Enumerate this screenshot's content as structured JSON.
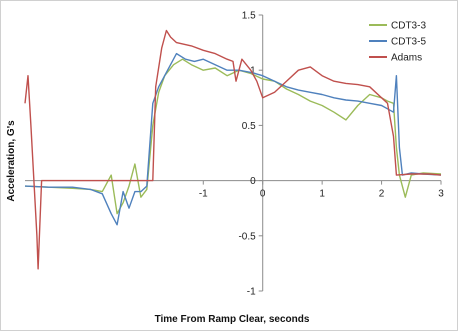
{
  "chart_data": {
    "type": "line",
    "title": "",
    "xlabel": "Time From Ramp Clear, seconds",
    "ylabel": "Acceleration, G's",
    "xlim": [
      -4,
      3
    ],
    "ylim": [
      -1,
      1.5
    ],
    "x_ticks": [
      "-1",
      "0",
      "1",
      "2",
      "3"
    ],
    "x_tick_values": [
      -1,
      0,
      1,
      2,
      3
    ],
    "y_ticks": [
      "-1",
      "-0.5",
      "0",
      "0.5",
      "1",
      "1.5"
    ],
    "y_tick_values": [
      -1,
      -0.5,
      0,
      0.5,
      1,
      1.5
    ],
    "grid": false,
    "legend_position": "top-right",
    "series": [
      {
        "name": "CDT3-3",
        "color": "#9bbb59",
        "points": [
          [
            -4.0,
            -0.05
          ],
          [
            -3.6,
            -0.06
          ],
          [
            -3.2,
            -0.07
          ],
          [
            -2.9,
            -0.08
          ],
          [
            -2.7,
            -0.1
          ],
          [
            -2.55,
            0.05
          ],
          [
            -2.45,
            -0.3
          ],
          [
            -2.35,
            -0.2
          ],
          [
            -2.25,
            -0.05
          ],
          [
            -2.15,
            0.15
          ],
          [
            -2.05,
            -0.15
          ],
          [
            -1.95,
            -0.08
          ],
          [
            -1.85,
            0.5
          ],
          [
            -1.75,
            0.8
          ],
          [
            -1.65,
            0.95
          ],
          [
            -1.5,
            1.05
          ],
          [
            -1.35,
            1.1
          ],
          [
            -1.2,
            1.05
          ],
          [
            -1.0,
            1.0
          ],
          [
            -0.8,
            1.02
          ],
          [
            -0.6,
            0.95
          ],
          [
            -0.4,
            1.0
          ],
          [
            -0.2,
            0.97
          ],
          [
            0.0,
            0.92
          ],
          [
            0.2,
            0.9
          ],
          [
            0.4,
            0.83
          ],
          [
            0.6,
            0.78
          ],
          [
            0.8,
            0.72
          ],
          [
            1.0,
            0.68
          ],
          [
            1.2,
            0.62
          ],
          [
            1.4,
            0.55
          ],
          [
            1.6,
            0.68
          ],
          [
            1.8,
            0.78
          ],
          [
            2.0,
            0.75
          ],
          [
            2.1,
            0.72
          ],
          [
            2.2,
            0.7
          ],
          [
            2.25,
            0.3
          ],
          [
            2.3,
            0.05
          ],
          [
            2.4,
            -0.15
          ],
          [
            2.5,
            0.05
          ],
          [
            2.7,
            0.07
          ],
          [
            3.0,
            0.06
          ]
        ]
      },
      {
        "name": "CDT3-5",
        "color": "#4f81bd",
        "points": [
          [
            -4.0,
            -0.05
          ],
          [
            -3.6,
            -0.06
          ],
          [
            -3.2,
            -0.06
          ],
          [
            -2.9,
            -0.08
          ],
          [
            -2.7,
            -0.12
          ],
          [
            -2.55,
            -0.3
          ],
          [
            -2.45,
            -0.4
          ],
          [
            -2.35,
            -0.1
          ],
          [
            -2.25,
            -0.25
          ],
          [
            -2.15,
            -0.1
          ],
          [
            -2.05,
            -0.1
          ],
          [
            -1.95,
            -0.05
          ],
          [
            -1.85,
            0.7
          ],
          [
            -1.75,
            0.85
          ],
          [
            -1.6,
            1.0
          ],
          [
            -1.45,
            1.15
          ],
          [
            -1.3,
            1.1
          ],
          [
            -1.15,
            1.08
          ],
          [
            -1.0,
            1.1
          ],
          [
            -0.8,
            1.05
          ],
          [
            -0.6,
            1.0
          ],
          [
            -0.4,
            1.0
          ],
          [
            -0.2,
            0.98
          ],
          [
            0.0,
            0.95
          ],
          [
            0.2,
            0.9
          ],
          [
            0.4,
            0.85
          ],
          [
            0.6,
            0.82
          ],
          [
            0.8,
            0.8
          ],
          [
            1.0,
            0.78
          ],
          [
            1.2,
            0.75
          ],
          [
            1.4,
            0.73
          ],
          [
            1.6,
            0.72
          ],
          [
            1.8,
            0.7
          ],
          [
            2.0,
            0.68
          ],
          [
            2.1,
            0.65
          ],
          [
            2.2,
            0.62
          ],
          [
            2.25,
            0.95
          ],
          [
            2.3,
            0.3
          ],
          [
            2.35,
            0.05
          ],
          [
            2.5,
            0.07
          ],
          [
            2.7,
            0.06
          ],
          [
            3.0,
            0.05
          ]
        ]
      },
      {
        "name": "Adams",
        "color": "#c0504d",
        "points": [
          [
            -4.0,
            0.7
          ],
          [
            -3.95,
            0.95
          ],
          [
            -3.9,
            0.5
          ],
          [
            -3.85,
            0.0
          ],
          [
            -3.8,
            -0.5
          ],
          [
            -3.78,
            -0.8
          ],
          [
            -3.72,
            0.0
          ],
          [
            -3.65,
            0.0
          ],
          [
            -3.0,
            0.0
          ],
          [
            -2.5,
            0.0
          ],
          [
            -2.0,
            0.0
          ],
          [
            -1.85,
            0.0
          ],
          [
            -1.8,
            0.85
          ],
          [
            -1.7,
            1.2
          ],
          [
            -1.62,
            1.36
          ],
          [
            -1.55,
            1.3
          ],
          [
            -1.45,
            1.25
          ],
          [
            -1.2,
            1.22
          ],
          [
            -1.0,
            1.18
          ],
          [
            -0.8,
            1.15
          ],
          [
            -0.6,
            1.1
          ],
          [
            -0.5,
            1.08
          ],
          [
            -0.45,
            0.9
          ],
          [
            -0.35,
            1.1
          ],
          [
            -0.2,
            1.0
          ],
          [
            -0.1,
            0.9
          ],
          [
            0.0,
            0.75
          ],
          [
            0.2,
            0.8
          ],
          [
            0.4,
            0.9
          ],
          [
            0.6,
            1.0
          ],
          [
            0.8,
            1.03
          ],
          [
            1.0,
            0.95
          ],
          [
            1.2,
            0.9
          ],
          [
            1.4,
            0.88
          ],
          [
            1.6,
            0.87
          ],
          [
            1.8,
            0.85
          ],
          [
            2.0,
            0.75
          ],
          [
            2.1,
            0.7
          ],
          [
            2.2,
            0.4
          ],
          [
            2.25,
            0.05
          ],
          [
            2.5,
            0.06
          ],
          [
            2.8,
            0.06
          ],
          [
            3.0,
            0.05
          ]
        ]
      }
    ]
  }
}
